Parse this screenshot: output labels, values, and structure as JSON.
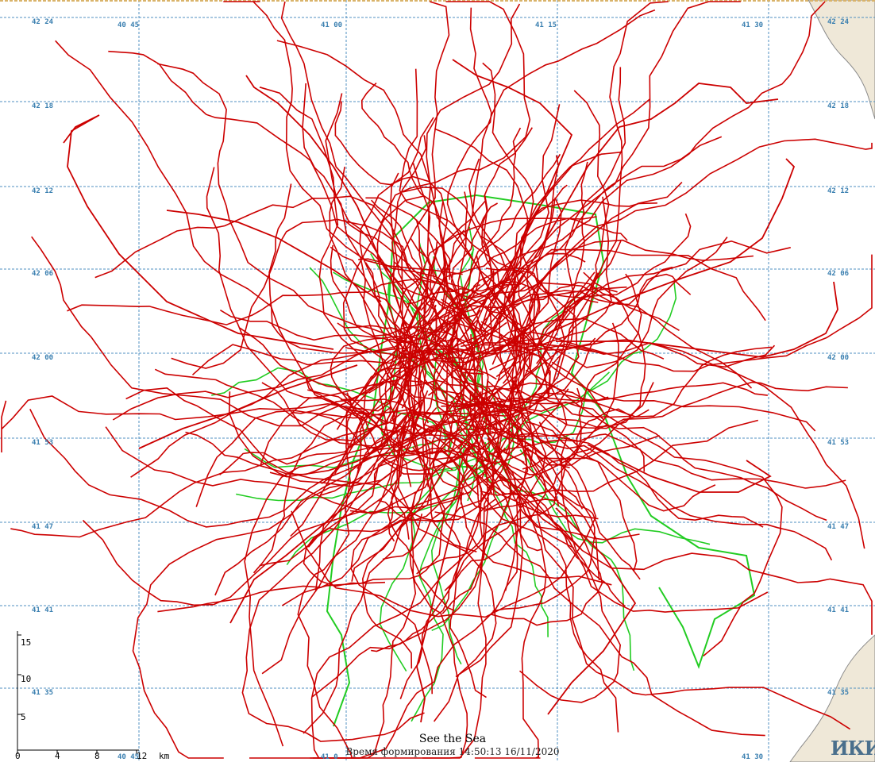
{
  "map": {
    "title": "See the Sea",
    "timestamp": "Время формирования 14:50:13 16/11/2020",
    "logo": "ИКИ",
    "colors": {
      "tracks_primary": "#cc0000",
      "tracks_secondary": "#22cc22",
      "grid": "#4f8fc0",
      "grid_label": "#3a7fb0",
      "land": "#efe8d8",
      "coast": "#8a8a8a"
    },
    "lat_labels": [
      "42 24",
      "42 18",
      "42 12",
      "42 06",
      "42 00",
      "41 53",
      "41 47",
      "41 41",
      "41 35"
    ],
    "lon_labels_top": [
      "40 45",
      "41 00",
      "41 15",
      "41 30"
    ],
    "lon_labels_bottom": [
      "40 45",
      "41 0",
      "41 30"
    ],
    "scale": {
      "x_ticks": [
        "0",
        "4",
        "8",
        "12"
      ],
      "x_unit": "km",
      "y_ticks": [
        "15",
        "10",
        "5"
      ]
    }
  }
}
